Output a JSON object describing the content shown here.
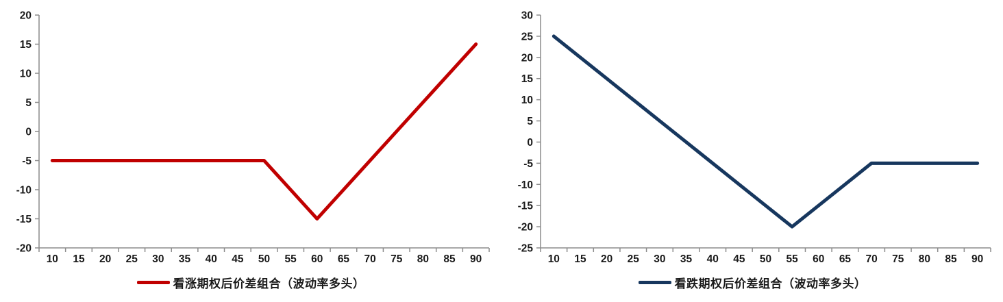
{
  "colors": {
    "axis": "#8C8C8C",
    "tick_text": "#1a1a1a",
    "background": "#ffffff",
    "series_red": "#C00000",
    "series_navy": "#17375E"
  },
  "chart_data": [
    {
      "type": "line",
      "title": "",
      "xlabel": "",
      "ylabel": "",
      "categories": [
        10,
        15,
        20,
        25,
        30,
        35,
        40,
        45,
        50,
        55,
        60,
        65,
        70,
        75,
        80,
        85,
        90
      ],
      "series": [
        {
          "name": "看涨期权后价差组合（波动率多头）",
          "values": [
            -5,
            -5,
            -5,
            -5,
            -5,
            -5,
            -5,
            -5,
            -5,
            -10,
            -15,
            -10,
            -5,
            0,
            5,
            10,
            15
          ],
          "color": "#C00000"
        }
      ],
      "legend": "看涨期权后价差组合（波动率多头）",
      "legend_position": "bottom",
      "ylim": [
        -20,
        20
      ],
      "ytick_step": 5,
      "grid": false
    },
    {
      "type": "line",
      "title": "",
      "xlabel": "",
      "ylabel": "",
      "categories": [
        10,
        15,
        20,
        25,
        30,
        35,
        40,
        45,
        50,
        55,
        60,
        65,
        70,
        75,
        80,
        85,
        90
      ],
      "series": [
        {
          "name": "看跌期权后价差组合（波动率多头）",
          "values": [
            25,
            20,
            15,
            10,
            5,
            0,
            -5,
            -10,
            -15,
            -20,
            -15,
            -10,
            -5,
            -5,
            -5,
            -5,
            -5
          ],
          "color": "#17375E"
        }
      ],
      "legend": "看跌期权后价差组合（波动率多头）",
      "legend_position": "bottom",
      "ylim": [
        -25,
        30
      ],
      "ytick_step": 5,
      "grid": false
    }
  ]
}
